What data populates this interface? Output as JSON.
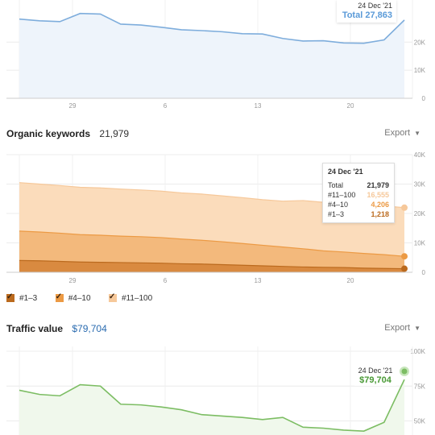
{
  "colors": {
    "blue": "#7eaddc",
    "blue_fill": "#eef4fb",
    "blue_text": "#5a9ad8",
    "green": "#7cbd63",
    "green_fill": "#f0f8ec",
    "green_text": "#4a9a36",
    "kw_11_100": "#f6c89a",
    "kw_4_10": "#ec9a44",
    "kw_1_3": "#bb6a1e",
    "value_link": "#2b6cb0"
  },
  "keywords": {
    "title": "Organic keywords",
    "value": "21,979",
    "export": "Export"
  },
  "traffic_value": {
    "title": "Traffic value",
    "value": "$79,704",
    "export": "Export"
  },
  "legend": [
    "#1–3",
    "#4–10",
    "#11–100"
  ],
  "chart_data": [
    {
      "type": "line",
      "name": "organic-traffic",
      "x_ticks": [
        "29",
        "6",
        "13",
        "20"
      ],
      "y_ticks": [
        "20K",
        "10K",
        "0"
      ],
      "ylim": [
        0,
        35000
      ],
      "values": [
        28200,
        27600,
        27300,
        30200,
        30000,
        26400,
        26100,
        25300,
        24400,
        24100,
        23700,
        23000,
        22900,
        21300,
        20400,
        20500,
        19700,
        19600,
        20800,
        27863
      ],
      "tooltip": {
        "date": "24 Dec '21",
        "label": "Total",
        "value": "27,863"
      }
    },
    {
      "type": "area",
      "name": "organic-keywords",
      "x_ticks": [
        "29",
        "6",
        "13",
        "20"
      ],
      "y_ticks": [
        "40K",
        "30K",
        "20K",
        "10K",
        "0"
      ],
      "ylim": [
        0,
        40000
      ],
      "series": [
        {
          "name": "#11–100",
          "values": [
            16500,
            16300,
            16200,
            16100,
            16100,
            16000,
            15900,
            15800,
            15700,
            15700,
            15600,
            15600,
            15500,
            15600,
            16400,
            16500,
            16450,
            16500,
            16550,
            16555
          ]
        },
        {
          "name": "#4–10",
          "values": [
            10000,
            9800,
            9600,
            9300,
            9200,
            9000,
            8900,
            8700,
            8400,
            8100,
            7800,
            7400,
            7000,
            6600,
            6200,
            5600,
            5300,
            5000,
            4700,
            4206
          ]
        },
        {
          "name": "#1–3",
          "values": [
            4000,
            3900,
            3700,
            3500,
            3400,
            3300,
            3200,
            3100,
            2900,
            2800,
            2600,
            2400,
            2200,
            2000,
            1800,
            1700,
            1600,
            1400,
            1300,
            1218
          ]
        }
      ],
      "tooltip": {
        "date": "24 Dec '21",
        "rows": [
          {
            "label": "Total",
            "value": "21,979"
          },
          {
            "label": "#11–100",
            "value": "16,555"
          },
          {
            "label": "#4–10",
            "value": "4,206"
          },
          {
            "label": "#1–3",
            "value": "1,218"
          }
        ]
      }
    },
    {
      "type": "line",
      "name": "traffic-value",
      "y_ticks": [
        "100K",
        "75K",
        "50K"
      ],
      "ylim": [
        37000,
        100000
      ],
      "values": [
        72000,
        69000,
        68000,
        76000,
        75000,
        62000,
        61500,
        60000,
        58000,
        54500,
        53500,
        52500,
        51000,
        52500,
        45500,
        44800,
        43400,
        42700,
        49000,
        79704
      ],
      "tooltip": {
        "date": "24 Dec '21",
        "value": "$79,704"
      }
    }
  ]
}
